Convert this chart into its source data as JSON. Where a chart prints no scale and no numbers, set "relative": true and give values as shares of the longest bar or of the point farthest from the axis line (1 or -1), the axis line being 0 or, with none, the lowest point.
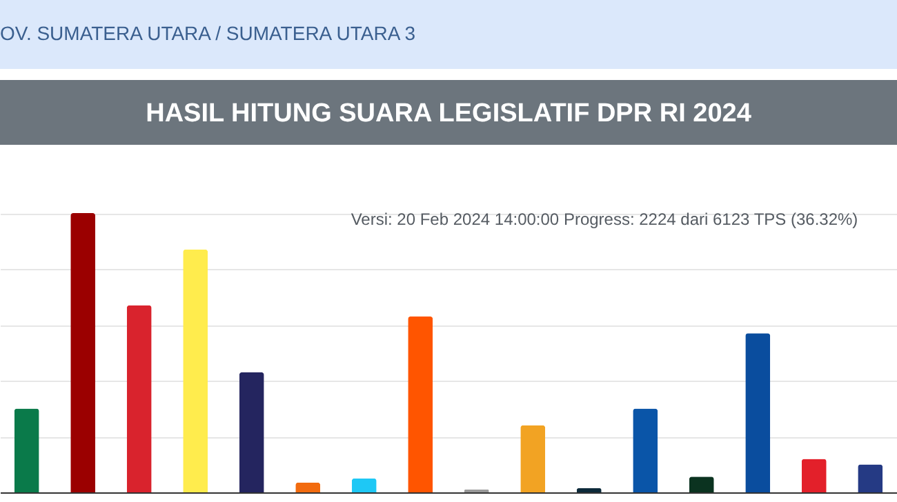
{
  "chart_data": {
    "type": "bar",
    "title": "HASIL HITUNG SUARA LEGISLATIF DPR RI 2024",
    "relative": true,
    "grid": "y",
    "categories": [
      null,
      null,
      null,
      null,
      null,
      null,
      null,
      null,
      null,
      null,
      null,
      null,
      null,
      null,
      null,
      null
    ],
    "values": [
      0.3,
      1,
      0.67,
      0.87,
      0.43,
      0.035,
      0.05,
      0.63,
      0.01,
      0.24,
      0.015,
      0.3,
      0.056,
      0.57,
      0.12,
      0.1
    ],
    "colors": [
      "#0a7a4a",
      "#9b0000",
      "#d9232d",
      "#ffec4d",
      "#24255f",
      "#f26b0f",
      "#1ec8f5",
      "#ff5500",
      "#999999",
      "#f2a323",
      "#0d2a3a",
      "#0a55a8",
      "#0b3320",
      "#0a4d9e",
      "#e3202a",
      "#253a84"
    ],
    "annotations": [
      "OV. SUMATERA UTARA  /  SUMATERA UTARA 3",
      "Versi: 20 Feb 2024 14:00:00 Progress: 2224 dari 6123 TPS (36.32%)"
    ]
  }
}
